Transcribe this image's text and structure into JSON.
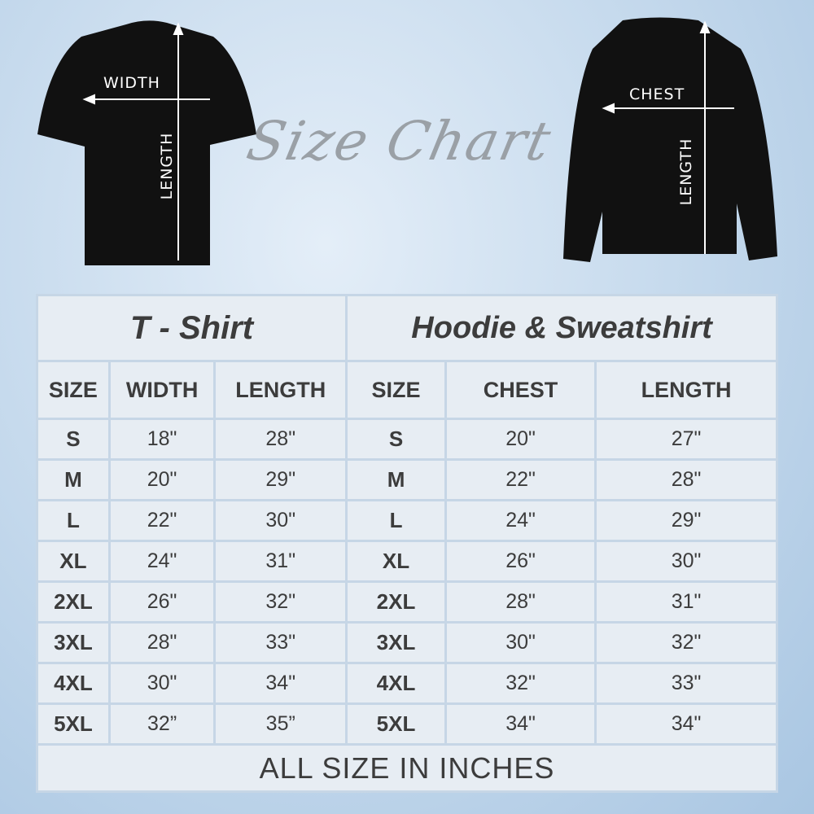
{
  "title": "Size Chart",
  "illustrations": {
    "tshirt": {
      "width_label": "WIDTH",
      "length_label": "LENGTH"
    },
    "sweatshirt": {
      "chest_label": "CHEST",
      "length_label": "LENGTH"
    }
  },
  "tshirt_table": {
    "title": "T - Shirt",
    "headers": [
      "SIZE",
      "WIDTH",
      "LENGTH"
    ],
    "rows": [
      [
        "S",
        "18\"",
        "28\""
      ],
      [
        "M",
        "20\"",
        "29\""
      ],
      [
        "L",
        "22\"",
        "30\""
      ],
      [
        "XL",
        "24\"",
        "31\""
      ],
      [
        "2XL",
        "26\"",
        "32\""
      ],
      [
        "3XL",
        "28\"",
        "33\""
      ],
      [
        "4XL",
        "30\"",
        "34\""
      ],
      [
        "5XL",
        "32”",
        "35”"
      ]
    ]
  },
  "hoodie_table": {
    "title": "Hoodie & Sweatshirt",
    "headers": [
      "SIZE",
      "CHEST",
      "LENGTH"
    ],
    "rows": [
      [
        "S",
        "20\"",
        "27\""
      ],
      [
        "M",
        "22\"",
        "28\""
      ],
      [
        "L",
        "24\"",
        "29\""
      ],
      [
        "XL",
        "26\"",
        "30\""
      ],
      [
        "2XL",
        "28\"",
        "31\""
      ],
      [
        "3XL",
        "30\"",
        "32\""
      ],
      [
        "4XL",
        "32\"",
        "33\""
      ],
      [
        "5XL",
        "34\"",
        "34\""
      ]
    ]
  },
  "footer": "ALL SIZE IN INCHES",
  "colors": {
    "garment": "#111111",
    "cell": "#e7edf3",
    "grid": "#c6d6e6",
    "text": "#3c3c3c"
  }
}
